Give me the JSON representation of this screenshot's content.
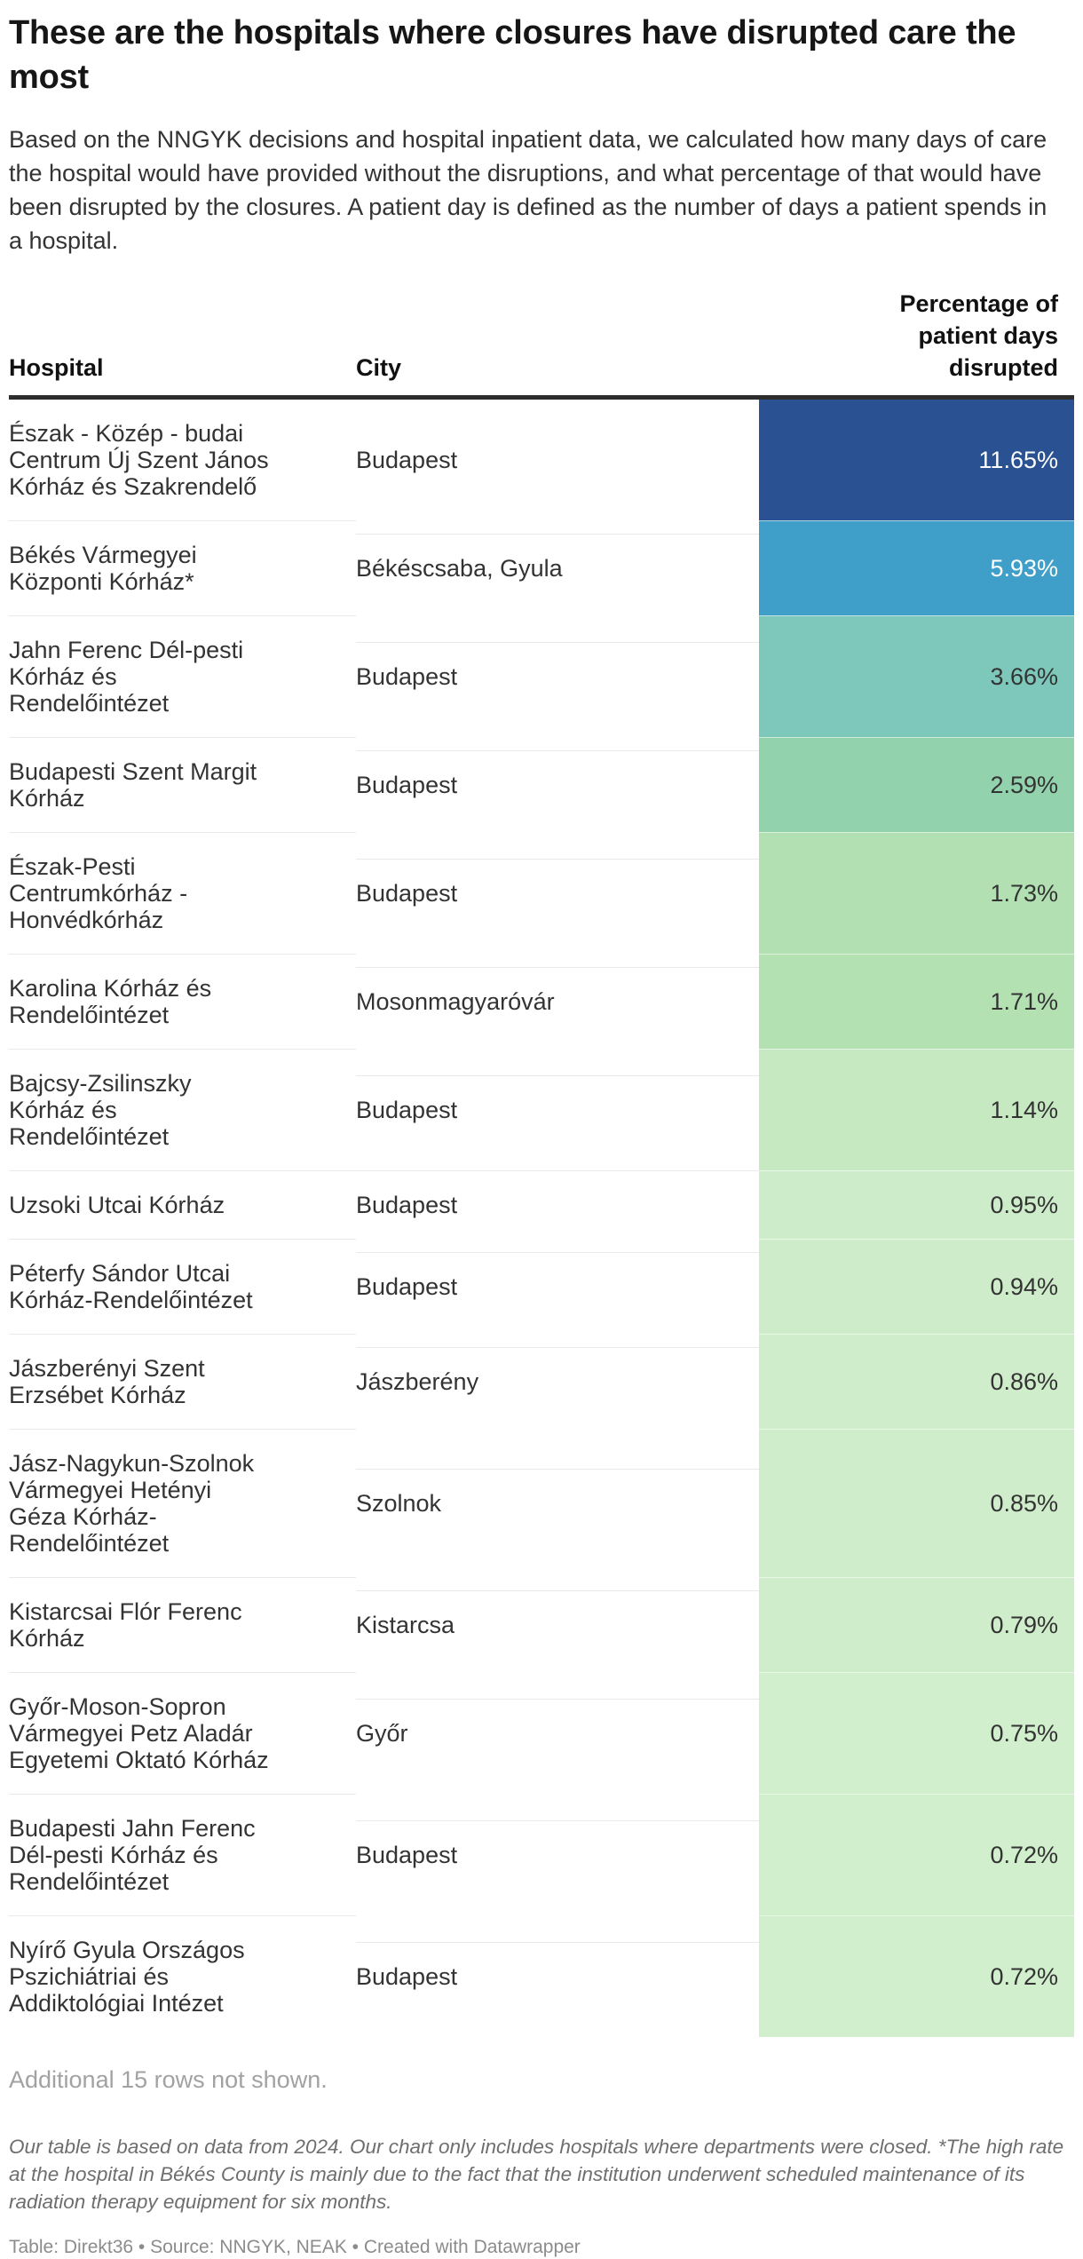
{
  "header": {
    "title": "These are the hospitals where closures have disrupted care the most",
    "description": "Based on the NNGYK decisions and hospital inpatient data, we calculated how many days of care the hospital would have provided without the disruptions, and what percentage of that would have been disrupted by the closures. A patient day is defined as the number of days a patient spends in a hospital."
  },
  "chart_data": {
    "type": "table",
    "title": "These are the hospitals where closures have disrupted care the most",
    "columns": [
      "Hospital",
      "City",
      "Percentage of patient days disrupted"
    ],
    "color_scale_note": "cells shaded dark blue (high) to light green (low)",
    "rows": [
      {
        "hospital": "Észak - Közép - budai Centrum Új Szent János Kórház és Szakrendelő",
        "city": "Budapest",
        "value_pct": 11.65,
        "label": "11.65%",
        "bg": "#2a5191",
        "text_color": "#ffffff"
      },
      {
        "hospital": "Békés Vármegyei Központi Kórház*",
        "city": "Békéscsaba, Gyula",
        "value_pct": 5.93,
        "label": "5.93%",
        "bg": "#3f9fc8",
        "text_color": "#ffffff"
      },
      {
        "hospital": "Jahn Ferenc Dél-pesti Kórház és Rendelőintézet",
        "city": "Budapest",
        "value_pct": 3.66,
        "label": "3.66%",
        "bg": "#7dc8bb",
        "text_color": "#333333"
      },
      {
        "hospital": "Budapesti Szent Margit Kórház",
        "city": "Budapest",
        "value_pct": 2.59,
        "label": "2.59%",
        "bg": "#92d3ae",
        "text_color": "#333333"
      },
      {
        "hospital": "Észak-Pesti Centrumkórház - Honvédkórház",
        "city": "Budapest",
        "value_pct": 1.73,
        "label": "1.73%",
        "bg": "#b2e0b2",
        "text_color": "#333333"
      },
      {
        "hospital": "Karolina Kórház és Rendelőintézet",
        "city": "Mosonmagyaróvár",
        "value_pct": 1.71,
        "label": "1.71%",
        "bg": "#b4e1b2",
        "text_color": "#333333"
      },
      {
        "hospital": "Bajcsy-Zsilinszky Kórház és Rendelőintézet",
        "city": "Budapest",
        "value_pct": 1.14,
        "label": "1.14%",
        "bg": "#c6e9c2",
        "text_color": "#333333"
      },
      {
        "hospital": "Uzsoki Utcai Kórház",
        "city": "Budapest",
        "value_pct": 0.95,
        "label": "0.95%",
        "bg": "#cdecca",
        "text_color": "#333333"
      },
      {
        "hospital": "Péterfy Sándor Utcai Kórház-Rendelőintézet",
        "city": "Budapest",
        "value_pct": 0.94,
        "label": "0.94%",
        "bg": "#ceecca",
        "text_color": "#333333"
      },
      {
        "hospital": "Jászberényi Szent Erzsébet Kórház",
        "city": "Jászberény",
        "value_pct": 0.86,
        "label": "0.86%",
        "bg": "#cfedcb",
        "text_color": "#333333"
      },
      {
        "hospital": "Jász-Nagykun-Szolnok Vármegyei Hetényi Géza Kórház-Rendelőintézet",
        "city": "Szolnok",
        "value_pct": 0.85,
        "label": "0.85%",
        "bg": "#cfedcb",
        "text_color": "#333333"
      },
      {
        "hospital": "Kistarcsai Flór Ferenc Kórház",
        "city": "Kistarcsa",
        "value_pct": 0.79,
        "label": "0.79%",
        "bg": "#d0edcb",
        "text_color": "#333333"
      },
      {
        "hospital": "Győr-Moson-Sopron Vármegyei Petz Aladár Egyetemi Oktató Kórház",
        "city": "Győr",
        "value_pct": 0.75,
        "label": "0.75%",
        "bg": "#d1eecd",
        "text_color": "#333333"
      },
      {
        "hospital": "Budapesti Jahn Ferenc Dél-pesti Kórház és Rendelőintézet",
        "city": "Budapest",
        "value_pct": 0.72,
        "label": "0.72%",
        "bg": "#d1eecd",
        "text_color": "#333333"
      },
      {
        "hospital": "Nyírő Gyula Országos Pszichiátriai és Addiktológiai Intézet",
        "city": "Budapest",
        "value_pct": 0.72,
        "label": "0.72%",
        "bg": "#d1eecd",
        "text_color": "#333333"
      }
    ]
  },
  "table_header": {
    "hospital": "Hospital",
    "city": "City",
    "value": "Percentage of patient days disrupted"
  },
  "footer": {
    "more_rows": "Additional 15 rows not shown.",
    "note": "Our table is based on data from 2024. Our chart only includes hospitals where departments were closed. *The high rate at the hospital in Békés County is mainly due to the fact that the institution underwent scheduled maintenance of its radiation therapy equipment for six months.",
    "attribution": "Table: Direkt36 • Source: NNGYK, NEAK • Created with Datawrapper"
  },
  "colors": {
    "header_rule": "#2d2d2d",
    "row_divider": "#e9e9e9",
    "muted_text": "#a2a2a2",
    "note_text": "#6e6e6e",
    "attribution_text": "#8c8c8c"
  }
}
